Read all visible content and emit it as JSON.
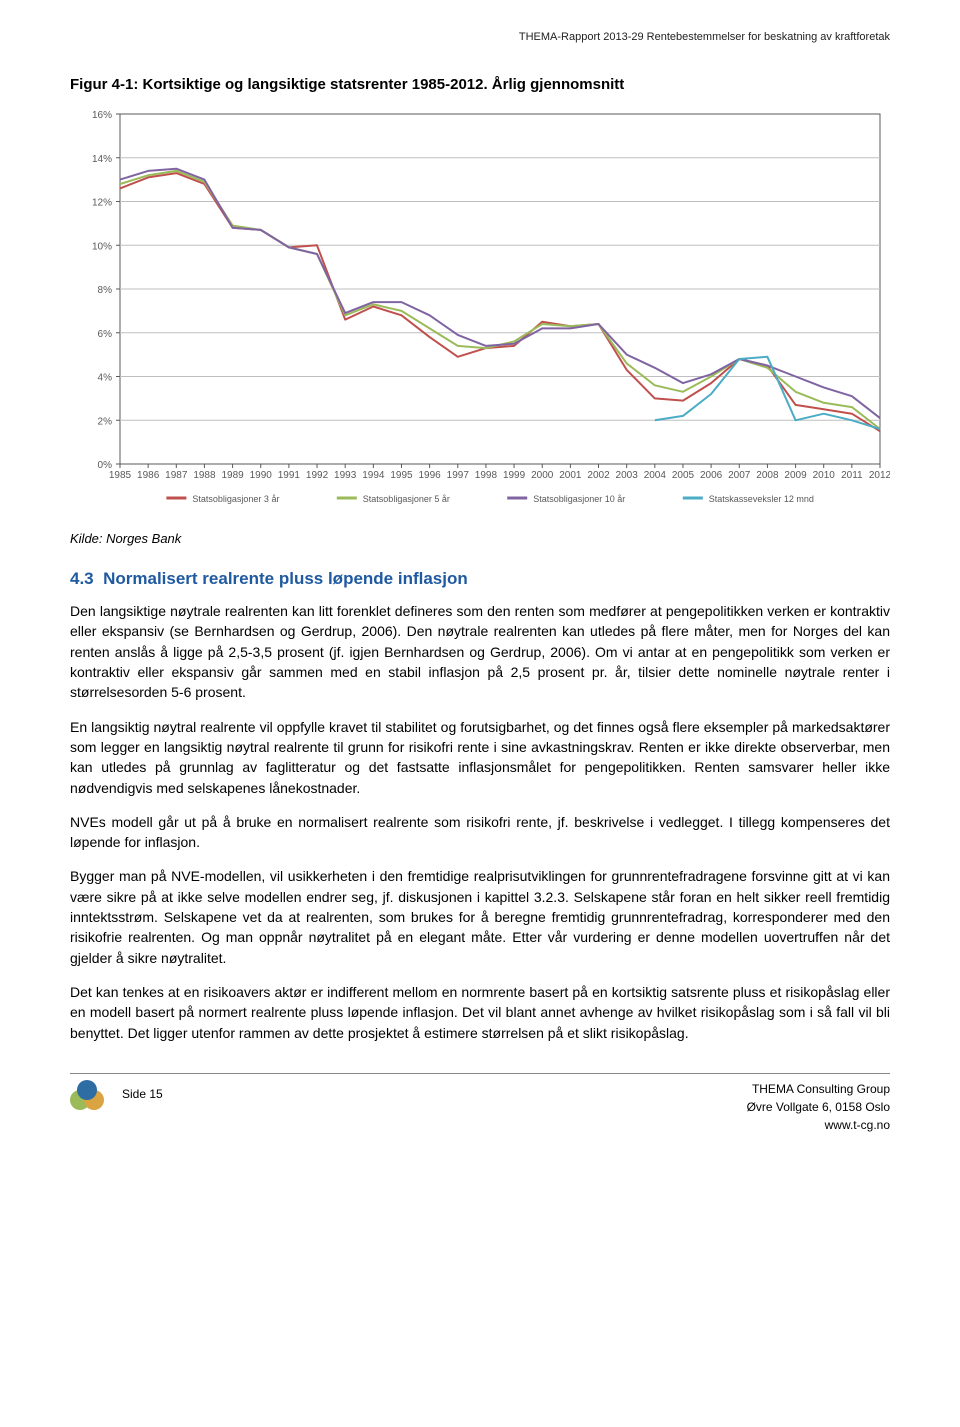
{
  "header": "THEMA-Rapport 2013-29 Rentebestemmelser for beskatning av kraftforetak",
  "figure_title": "Figur 4-1: Kortsiktige og langsiktige statsrenter 1985-2012. Årlig gjennomsnitt",
  "chart": {
    "type": "line",
    "background_color": "#ffffff",
    "grid_color": "#bfbfbf",
    "axis_color": "#595959",
    "tick_fontsize": 10,
    "tick_color": "#595959",
    "ylim": [
      0,
      16
    ],
    "ytick_step": 2,
    "ytick_suffix": "%",
    "x_labels": [
      "1985",
      "1986",
      "1987",
      "1988",
      "1989",
      "1990",
      "1991",
      "1992",
      "1993",
      "1994",
      "1995",
      "1996",
      "1997",
      "1998",
      "1999",
      "2000",
      "2001",
      "2002",
      "2003",
      "2004",
      "2005",
      "2006",
      "2007",
      "2008",
      "2009",
      "2010",
      "2011",
      "2012"
    ],
    "line_width": 2,
    "series": [
      {
        "name": "Statsobligasjoner 3 år",
        "color": "#c0504d",
        "values": [
          12.6,
          13.1,
          13.3,
          12.8,
          10.8,
          10.7,
          9.9,
          10.0,
          6.6,
          7.2,
          6.8,
          5.8,
          4.9,
          5.3,
          5.4,
          6.5,
          6.3,
          6.4,
          4.3,
          3.0,
          2.9,
          3.7,
          4.8,
          4.5,
          2.7,
          2.5,
          2.3,
          1.5
        ]
      },
      {
        "name": "Statsobligasjoner 5 år",
        "color": "#9bbb59",
        "values": [
          12.8,
          13.2,
          13.4,
          12.9,
          10.9,
          10.7,
          9.9,
          9.6,
          6.8,
          7.3,
          7.0,
          6.2,
          5.4,
          5.3,
          5.6,
          6.4,
          6.3,
          6.4,
          4.6,
          3.6,
          3.3,
          4.0,
          4.8,
          4.4,
          3.3,
          2.8,
          2.6,
          1.6
        ]
      },
      {
        "name": "Statsobligasjoner 10 år",
        "color": "#8064a2",
        "values": [
          13.0,
          13.4,
          13.5,
          13.0,
          10.8,
          10.7,
          9.9,
          9.6,
          6.9,
          7.4,
          7.4,
          6.8,
          5.9,
          5.4,
          5.5,
          6.2,
          6.2,
          6.4,
          5.0,
          4.4,
          3.7,
          4.1,
          4.8,
          4.5,
          4.0,
          3.5,
          3.1,
          2.1
        ]
      },
      {
        "name": "Statskasseveksler 12 mnd",
        "color": "#4bacc6",
        "values": [
          null,
          null,
          null,
          null,
          null,
          null,
          null,
          null,
          null,
          null,
          null,
          null,
          null,
          null,
          null,
          null,
          null,
          null,
          null,
          2.0,
          2.2,
          3.2,
          4.8,
          4.9,
          2.0,
          2.3,
          2.0,
          1.6
        ]
      }
    ],
    "legend_fontsize": 9
  },
  "kilde": "Kilde: Norges Bank",
  "section": {
    "number": "4.3",
    "title": "Normalisert realrente pluss løpende inflasjon"
  },
  "paragraphs": [
    "Den langsiktige nøytrale realrenten kan litt forenklet defineres som den renten som medfører at pengepolitikken verken er kontraktiv eller ekspansiv (se Bernhardsen og Gerdrup, 2006). Den nøytrale realrenten kan utledes på flere måter, men for Norges del kan renten anslås å ligge på 2,5-3,5 prosent (jf. igjen Bernhardsen og Gerdrup, 2006). Om vi antar at en pengepolitikk som verken er kontraktiv eller ekspansiv går sammen med en stabil inflasjon på 2,5 prosent pr. år, tilsier dette nominelle nøytrale renter i størrelsesorden 5-6 prosent.",
    "En langsiktig nøytral realrente vil oppfylle kravet til stabilitet og forutsigbarhet, og det finnes også flere eksempler på markedsaktører som legger en langsiktig nøytral realrente til grunn for risikofri rente i sine avkastningskrav. Renten er ikke direkte observerbar, men kan utledes på grunnlag av faglitteratur og det fastsatte inflasjonsmålet for pengepolitikken. Renten samsvarer heller ikke nødvendigvis med selskapenes lånekostnader.",
    "NVEs modell går ut på å bruke en normalisert realrente som risikofri rente, jf. beskrivelse i vedlegget. I tillegg kompenseres det løpende for inflasjon.",
    "Bygger man på NVE-modellen, vil usikkerheten i den fremtidige realprisutviklingen for grunnrentefradragene forsvinne gitt at vi kan være sikre på at ikke selve modellen endrer seg, jf. diskusjonen i kapittel 3.2.3. Selskapene står foran en helt sikker reell fremtidig inntektsstrøm. Selskapene vet da at realrenten, som brukes for å beregne fremtidig grunnrentefradrag, korresponderer med den risikofrie realrenten. Og man oppnår nøytralitet på en elegant måte. Etter vår vurdering er denne modellen uovertruffen når det gjelder å sikre nøytralitet.",
    "Det kan tenkes at en risikoavers aktør er indifferent mellom en normrente basert på en kortsiktig satsrente pluss et risikopåslag eller en modell basert på normert realrente pluss løpende inflasjon. Det vil blant annet avhenge av hvilket risikopåslag som i så fall vil bli benyttet. Det ligger utenfor rammen av dette prosjektet å estimere størrelsen på et slikt risikopåslag."
  ],
  "footer": {
    "left": "Side 15",
    "right_line1": "THEMA Consulting Group",
    "right_line2": "Øvre Vollgate 6, 0158 Oslo",
    "right_line3": "www.t-cg.no"
  },
  "logo_colors": {
    "c1": "#9bbb59",
    "c2": "#d9a441",
    "c3": "#2e6da4"
  }
}
